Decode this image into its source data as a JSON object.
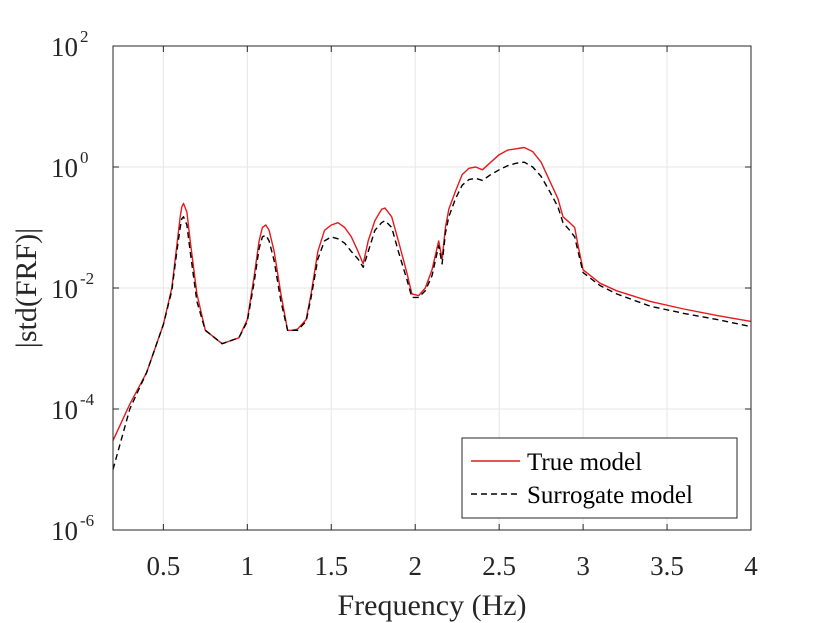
{
  "chart_data": {
    "type": "line",
    "title": "",
    "xlabel": "Frequency (Hz)",
    "ylabel": "|std(FRF)|",
    "xlim": [
      0.2,
      4
    ],
    "ylim_log10": [
      -6,
      2
    ],
    "yscale": "log",
    "grid": true,
    "legend_position": "bottom-right",
    "x_ticks": [
      0.5,
      1,
      1.5,
      2,
      2.5,
      3,
      3.5,
      4
    ],
    "x_tick_labels": [
      "0.5",
      "1",
      "1.5",
      "2",
      "2.5",
      "3",
      "3.5",
      "4"
    ],
    "y_tick_exponents": [
      -6,
      -4,
      -2,
      0,
      2
    ],
    "y_tick_labels": [
      {
        "base": "10",
        "exp": "-6"
      },
      {
        "base": "10",
        "exp": "-4"
      },
      {
        "base": "10",
        "exp": "-2"
      },
      {
        "base": "10",
        "exp": "0"
      },
      {
        "base": "10",
        "exp": "2"
      }
    ],
    "series": [
      {
        "name": "True model",
        "color": "#e41a1c",
        "dash": "solid",
        "x": [
          0.2,
          0.3,
          0.4,
          0.5,
          0.55,
          0.58,
          0.6,
          0.61,
          0.62,
          0.64,
          0.66,
          0.7,
          0.75,
          0.85,
          0.95,
          1.0,
          1.04,
          1.07,
          1.09,
          1.11,
          1.13,
          1.16,
          1.2,
          1.24,
          1.27,
          1.3,
          1.35,
          1.38,
          1.42,
          1.46,
          1.5,
          1.54,
          1.58,
          1.62,
          1.66,
          1.69,
          1.72,
          1.76,
          1.8,
          1.82,
          1.86,
          1.9,
          1.95,
          1.98,
          2.02,
          2.06,
          2.1,
          2.14,
          2.16,
          2.18,
          2.2,
          2.24,
          2.28,
          2.32,
          2.36,
          2.4,
          2.45,
          2.5,
          2.55,
          2.6,
          2.65,
          2.7,
          2.75,
          2.8,
          2.85,
          2.88,
          2.92,
          2.95,
          2.97,
          3.0,
          3.1,
          3.2,
          3.4,
          3.6,
          3.8,
          4.0
        ],
        "y": [
          3e-05,
          0.00012,
          0.0004,
          0.0025,
          0.01,
          0.05,
          0.15,
          0.22,
          0.25,
          0.18,
          0.06,
          0.008,
          0.002,
          0.0012,
          0.0015,
          0.003,
          0.015,
          0.06,
          0.1,
          0.11,
          0.09,
          0.04,
          0.008,
          0.002,
          0.002,
          0.0021,
          0.003,
          0.008,
          0.04,
          0.09,
          0.11,
          0.12,
          0.1,
          0.07,
          0.04,
          0.025,
          0.06,
          0.13,
          0.2,
          0.21,
          0.15,
          0.06,
          0.018,
          0.008,
          0.0075,
          0.01,
          0.02,
          0.06,
          0.03,
          0.1,
          0.2,
          0.4,
          0.75,
          0.95,
          1.0,
          0.9,
          1.2,
          1.6,
          1.9,
          2.0,
          2.1,
          1.8,
          1.2,
          0.6,
          0.3,
          0.15,
          0.12,
          0.1,
          0.05,
          0.02,
          0.012,
          0.009,
          0.006,
          0.0045,
          0.0035,
          0.0028
        ]
      },
      {
        "name": "Surrogate model",
        "color": "#000000",
        "dash": "dashed",
        "x": [
          0.2,
          0.3,
          0.4,
          0.5,
          0.55,
          0.58,
          0.6,
          0.61,
          0.62,
          0.64,
          0.66,
          0.7,
          0.75,
          0.85,
          0.95,
          1.0,
          1.04,
          1.07,
          1.09,
          1.11,
          1.13,
          1.16,
          1.2,
          1.24,
          1.27,
          1.3,
          1.35,
          1.38,
          1.42,
          1.46,
          1.5,
          1.54,
          1.58,
          1.62,
          1.66,
          1.69,
          1.72,
          1.76,
          1.8,
          1.82,
          1.86,
          1.9,
          1.95,
          1.98,
          2.02,
          2.06,
          2.1,
          2.14,
          2.16,
          2.18,
          2.2,
          2.24,
          2.28,
          2.32,
          2.36,
          2.4,
          2.45,
          2.5,
          2.55,
          2.6,
          2.65,
          2.7,
          2.75,
          2.8,
          2.85,
          2.88,
          2.92,
          2.95,
          2.97,
          3.0,
          3.1,
          3.2,
          3.4,
          3.6,
          3.8,
          4.0
        ],
        "y": [
          1e-05,
          0.0001,
          0.0004,
          0.0025,
          0.009,
          0.04,
          0.1,
          0.14,
          0.15,
          0.11,
          0.04,
          0.006,
          0.002,
          0.0012,
          0.0015,
          0.0028,
          0.012,
          0.045,
          0.07,
          0.075,
          0.06,
          0.028,
          0.006,
          0.002,
          0.002,
          0.002,
          0.0028,
          0.007,
          0.03,
          0.06,
          0.07,
          0.065,
          0.055,
          0.04,
          0.03,
          0.022,
          0.04,
          0.09,
          0.12,
          0.13,
          0.1,
          0.04,
          0.014,
          0.007,
          0.007,
          0.009,
          0.016,
          0.05,
          0.025,
          0.08,
          0.15,
          0.3,
          0.5,
          0.62,
          0.65,
          0.6,
          0.75,
          0.9,
          1.05,
          1.15,
          1.2,
          1.0,
          0.7,
          0.4,
          0.22,
          0.12,
          0.09,
          0.07,
          0.04,
          0.018,
          0.011,
          0.008,
          0.005,
          0.0038,
          0.003,
          0.0023
        ]
      }
    ]
  }
}
